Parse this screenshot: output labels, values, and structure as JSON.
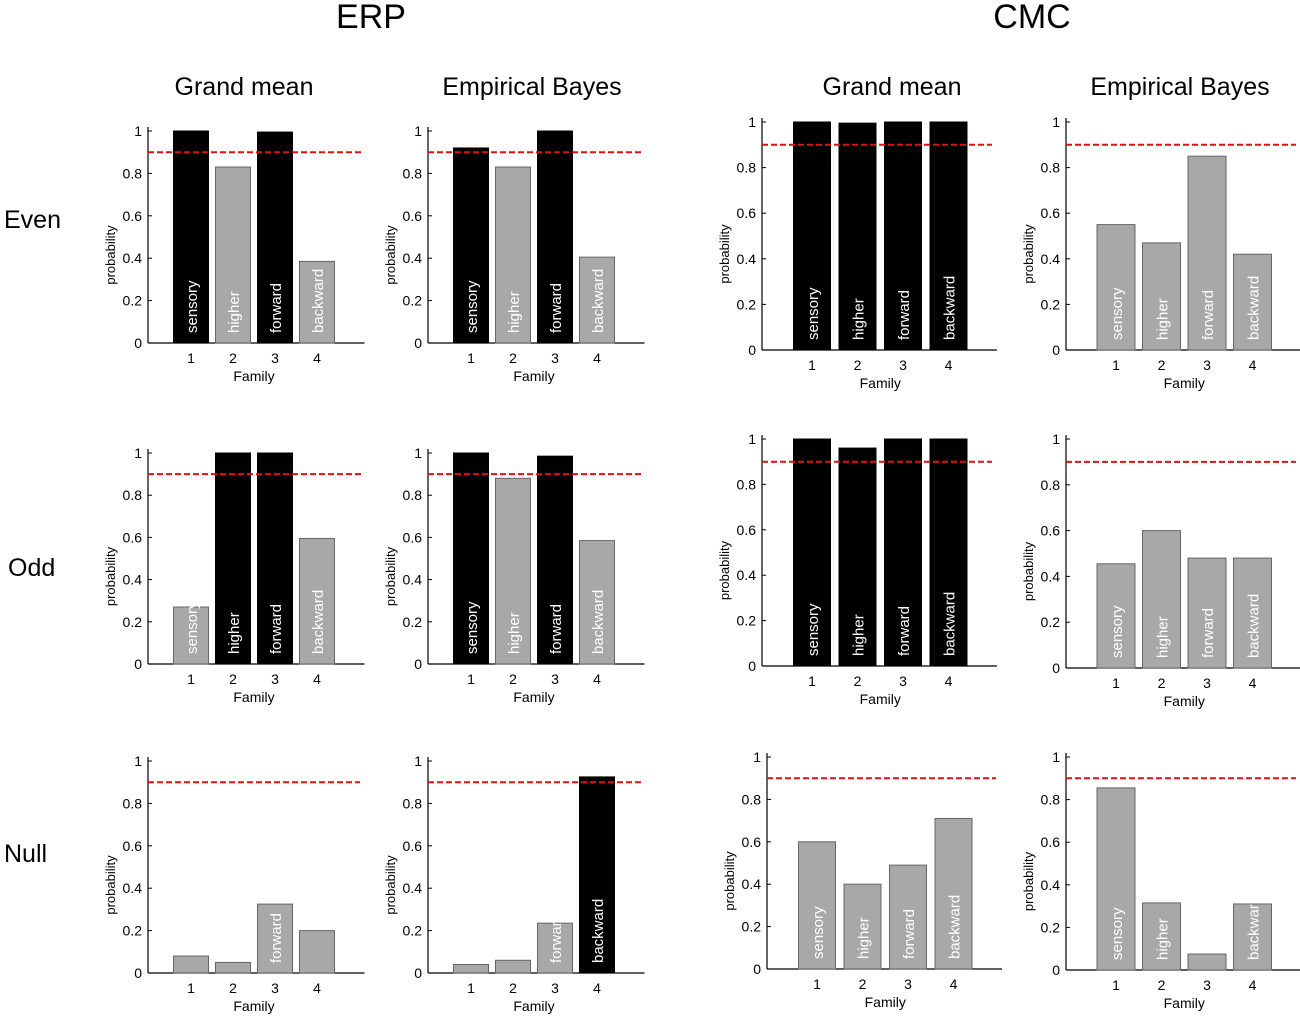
{
  "groups": [
    {
      "title": "ERP",
      "columns": [
        "Grand mean",
        "Empirical Bayes"
      ]
    },
    {
      "title": "CMC",
      "columns": [
        "Grand mean",
        "Empirical Bayes"
      ]
    }
  ],
  "rows": [
    "Even",
    "Odd",
    "Null"
  ],
  "axis": {
    "ylabel": "probability",
    "xlabel": "Family",
    "ylim": [
      0,
      1
    ],
    "yticks": [
      "0",
      "0.2",
      "0.4",
      "0.6",
      "0.8",
      "1"
    ],
    "threshold": 0.9
  },
  "families": [
    "1",
    "2",
    "3",
    "4"
  ],
  "colors": {
    "above": "#000000",
    "below": "#a8a8a8",
    "threshold": "#e01010",
    "bar_edge": "#666666"
  },
  "chart_data": [
    {
      "type": "bar",
      "group": "ERP",
      "method": "Grand mean",
      "row": "Even",
      "categories": [
        "1",
        "2",
        "3",
        "4"
      ],
      "values": [
        1.0,
        0.83,
        0.995,
        0.385
      ],
      "bar_labels": [
        "sensory",
        "higher",
        "forward",
        "backward"
      ],
      "threshold": 0.9,
      "ylim": [
        0,
        1
      ],
      "xlabel": "Family",
      "ylabel": "probability"
    },
    {
      "type": "bar",
      "group": "ERP",
      "method": "Empirical Bayes",
      "row": "Even",
      "categories": [
        "1",
        "2",
        "3",
        "4"
      ],
      "values": [
        0.92,
        0.83,
        1.0,
        0.405
      ],
      "bar_labels": [
        "sensory",
        "higher",
        "forward",
        "backward"
      ],
      "threshold": 0.9,
      "ylim": [
        0,
        1
      ],
      "xlabel": "Family",
      "ylabel": "probability"
    },
    {
      "type": "bar",
      "group": "CMC",
      "method": "Grand mean",
      "row": "Even",
      "categories": [
        "1",
        "2",
        "3",
        "4"
      ],
      "values": [
        1.0,
        0.995,
        1.0,
        1.0
      ],
      "bar_labels": [
        "sensory",
        "higher",
        "forward",
        "backward"
      ],
      "threshold": 0.9,
      "ylim": [
        0,
        1
      ],
      "xlabel": "Family",
      "ylabel": "probability"
    },
    {
      "type": "bar",
      "group": "CMC",
      "method": "Empirical Bayes",
      "row": "Even",
      "categories": [
        "1",
        "2",
        "3",
        "4"
      ],
      "values": [
        0.55,
        0.47,
        0.85,
        0.42
      ],
      "bar_labels": [
        "sensory",
        "higher",
        "forward",
        "backward"
      ],
      "threshold": 0.9,
      "ylim": [
        0,
        1
      ],
      "xlabel": "Family",
      "ylabel": "probability"
    },
    {
      "type": "bar",
      "group": "ERP",
      "method": "Grand mean",
      "row": "Odd",
      "categories": [
        "1",
        "2",
        "3",
        "4"
      ],
      "values": [
        0.27,
        1.0,
        1.0,
        0.595
      ],
      "bar_labels": [
        "sensory",
        "higher",
        "forward",
        "backward"
      ],
      "threshold": 0.9,
      "ylim": [
        0,
        1
      ],
      "xlabel": "Family",
      "ylabel": "probability"
    },
    {
      "type": "bar",
      "group": "ERP",
      "method": "Empirical Bayes",
      "row": "Odd",
      "categories": [
        "1",
        "2",
        "3",
        "4"
      ],
      "values": [
        1.0,
        0.88,
        0.985,
        0.585
      ],
      "bar_labels": [
        "sensory",
        "higher",
        "forward",
        "backward"
      ],
      "threshold": 0.9,
      "ylim": [
        0,
        1
      ],
      "xlabel": "Family",
      "ylabel": "probability"
    },
    {
      "type": "bar",
      "group": "CMC",
      "method": "Grand mean",
      "row": "Odd",
      "categories": [
        "1",
        "2",
        "3",
        "4"
      ],
      "values": [
        1.0,
        0.96,
        1.0,
        1.0
      ],
      "bar_labels": [
        "sensory",
        "higher",
        "forward",
        "backward"
      ],
      "threshold": 0.9,
      "ylim": [
        0,
        1
      ],
      "xlabel": "Family",
      "ylabel": "probability"
    },
    {
      "type": "bar",
      "group": "CMC",
      "method": "Empirical Bayes",
      "row": "Odd",
      "categories": [
        "1",
        "2",
        "3",
        "4"
      ],
      "values": [
        0.455,
        0.6,
        0.48,
        0.48
      ],
      "bar_labels": [
        "sensory",
        "higher",
        "forward",
        "backward"
      ],
      "threshold": 0.9,
      "ylim": [
        0,
        1
      ],
      "xlabel": "Family",
      "ylabel": "probability"
    },
    {
      "type": "bar",
      "group": "ERP",
      "method": "Grand mean",
      "row": "Null",
      "categories": [
        "1",
        "2",
        "3",
        "4"
      ],
      "values": [
        0.08,
        0.05,
        0.325,
        0.2
      ],
      "bar_labels": [
        "",
        "",
        "forward",
        ""
      ],
      "threshold": 0.9,
      "ylim": [
        0,
        1
      ],
      "xlabel": "Family",
      "ylabel": "probability"
    },
    {
      "type": "bar",
      "group": "ERP",
      "method": "Empirical Bayes",
      "row": "Null",
      "categories": [
        "1",
        "2",
        "3",
        "4"
      ],
      "values": [
        0.04,
        0.06,
        0.235,
        0.925
      ],
      "bar_labels": [
        "",
        "",
        "forward",
        "backward"
      ],
      "threshold": 0.9,
      "ylim": [
        0,
        1
      ],
      "xlabel": "Family",
      "ylabel": "probability"
    },
    {
      "type": "bar",
      "group": "CMC",
      "method": "Grand mean",
      "row": "Null",
      "categories": [
        "1",
        "2",
        "3",
        "4"
      ],
      "values": [
        0.6,
        0.4,
        0.49,
        0.71
      ],
      "bar_labels": [
        "sensory",
        "higher",
        "forward",
        "backward"
      ],
      "threshold": 0.9,
      "ylim": [
        0,
        1
      ],
      "xlabel": "Family",
      "ylabel": "probability"
    },
    {
      "type": "bar",
      "group": "CMC",
      "method": "Empirical Bayes",
      "row": "Null",
      "categories": [
        "1",
        "2",
        "3",
        "4"
      ],
      "values": [
        0.855,
        0.315,
        0.075,
        0.31
      ],
      "bar_labels": [
        "sensory",
        "higher",
        "",
        "backward"
      ],
      "threshold": 0.9,
      "ylim": [
        0,
        1
      ],
      "xlabel": "Family",
      "ylabel": "probability"
    }
  ]
}
